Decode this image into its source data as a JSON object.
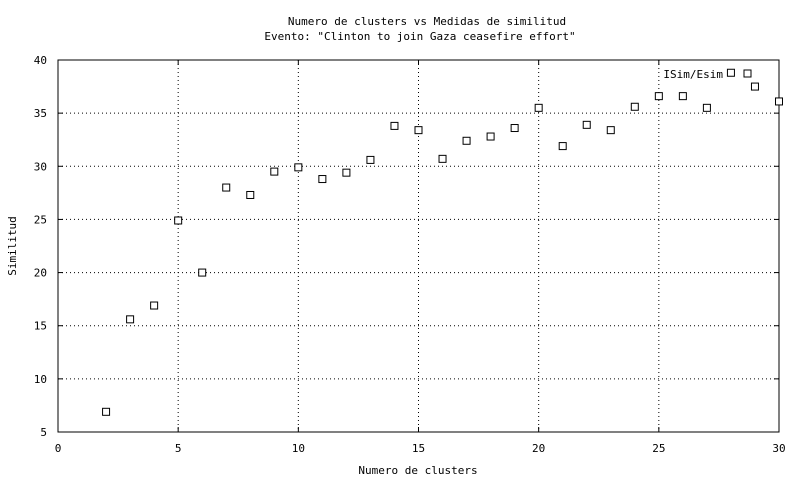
{
  "chart_data": {
    "type": "scatter",
    "title": "Numero de clusters vs Medidas de similitud",
    "subtitle": "Evento: \"Clinton to join Gaza ceasefire effort\"",
    "xlabel": "Numero de clusters",
    "ylabel": "Similitud",
    "xlim": [
      0,
      30
    ],
    "ylim": [
      5,
      40
    ],
    "xticks": [
      0,
      5,
      10,
      15,
      20,
      25,
      30
    ],
    "yticks": [
      5,
      10,
      15,
      20,
      25,
      30,
      35,
      40
    ],
    "grid": true,
    "legend_position": "top-right",
    "series": [
      {
        "name": "ISim/Esim",
        "marker": "open-square",
        "color": "#000000",
        "points": [
          {
            "x": 2,
            "y": 6.9
          },
          {
            "x": 3,
            "y": 15.6
          },
          {
            "x": 4,
            "y": 16.9
          },
          {
            "x": 5,
            "y": 24.9
          },
          {
            "x": 6,
            "y": 20.0
          },
          {
            "x": 7,
            "y": 28.0
          },
          {
            "x": 8,
            "y": 27.3
          },
          {
            "x": 9,
            "y": 29.5
          },
          {
            "x": 10,
            "y": 29.9
          },
          {
            "x": 11,
            "y": 28.8
          },
          {
            "x": 12,
            "y": 29.4
          },
          {
            "x": 13,
            "y": 30.6
          },
          {
            "x": 14,
            "y": 33.8
          },
          {
            "x": 15,
            "y": 33.4
          },
          {
            "x": 16,
            "y": 30.7
          },
          {
            "x": 17,
            "y": 32.4
          },
          {
            "x": 18,
            "y": 32.8
          },
          {
            "x": 19,
            "y": 33.6
          },
          {
            "x": 20,
            "y": 35.5
          },
          {
            "x": 21,
            "y": 31.9
          },
          {
            "x": 22,
            "y": 33.9
          },
          {
            "x": 23,
            "y": 33.4
          },
          {
            "x": 24,
            "y": 35.6
          },
          {
            "x": 25,
            "y": 36.6
          },
          {
            "x": 26,
            "y": 36.6
          },
          {
            "x": 27,
            "y": 35.5
          },
          {
            "x": 28,
            "y": 38.8
          },
          {
            "x": 29,
            "y": 37.5
          },
          {
            "x": 30,
            "y": 36.1
          }
        ]
      }
    ]
  }
}
